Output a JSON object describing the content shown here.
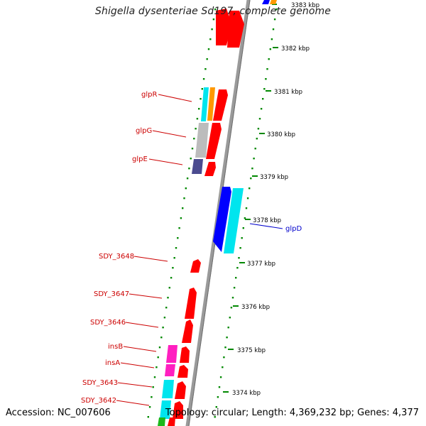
{
  "title": "Shigella dysenteriae Sd197, complete genome",
  "footer": {
    "accession": "Accession: NC_007606",
    "summary": "Topology: circular; Length: 4,369,232 bp; Genes: 4,377"
  },
  "map": {
    "ticks": [
      "3383 kbp",
      "3382 kbp",
      "3381 kbp",
      "3380 kbp",
      "3379 kbp",
      "3378 kbp",
      "3377 kbp",
      "3376 kbp",
      "3375 kbp",
      "3374 kbp"
    ],
    "genes": [
      {
        "name": "glpR",
        "strand": "left"
      },
      {
        "name": "glpG",
        "strand": "left"
      },
      {
        "name": "glpE",
        "strand": "left"
      },
      {
        "name": "glpD",
        "strand": "right"
      },
      {
        "name": "SDY_3648",
        "strand": "left"
      },
      {
        "name": "SDY_3647",
        "strand": "left"
      },
      {
        "name": "SDY_3646",
        "strand": "left"
      },
      {
        "name": "insB",
        "strand": "left"
      },
      {
        "name": "insA",
        "strand": "left"
      },
      {
        "name": "SDY_3643",
        "strand": "left"
      },
      {
        "name": "SDY_3642",
        "strand": "left"
      }
    ]
  },
  "colors": {
    "forward": "#ff0000",
    "reverse": "#0000ff",
    "cyan": "#00e5ee",
    "orange": "#ff9800",
    "grey": "#bcbcbc",
    "slate": "#4b4b8f",
    "pink": "#ff1fc0",
    "green": "#1bb81b",
    "backbone": "#9a9a9a",
    "dots": "#008800",
    "label_left": "#cc0000",
    "label_right": "#0000cc"
  }
}
